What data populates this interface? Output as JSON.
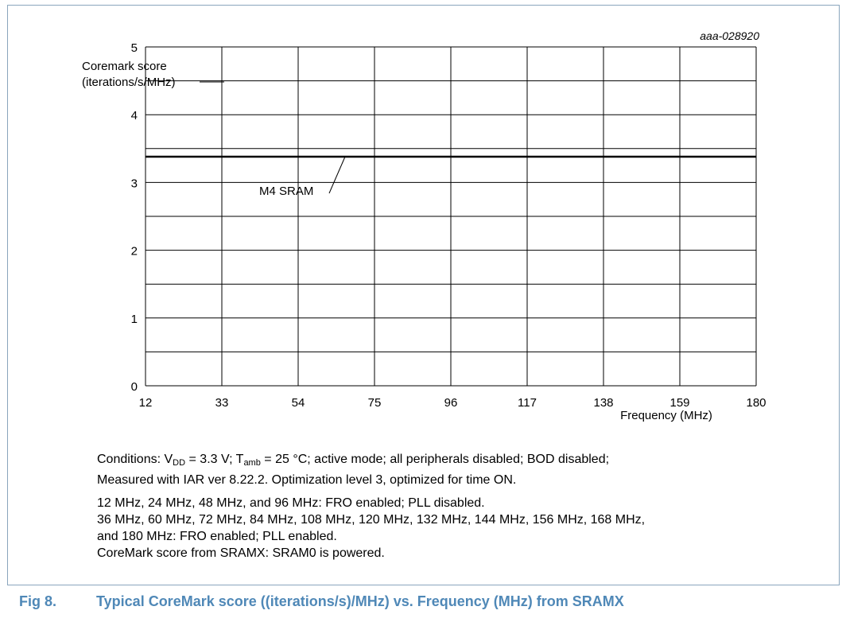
{
  "chart_data": {
    "type": "line",
    "code": "aaa-028920",
    "ylabel_line1": "Coremark score",
    "ylabel_line2": "(iterations/s/MHz)",
    "xlabel": "Frequency (MHz)",
    "x_ticks": [
      "12",
      "33",
      "54",
      "75",
      "96",
      "117",
      "138",
      "159",
      "180"
    ],
    "y_ticks": [
      "0",
      "1",
      "2",
      "3",
      "4",
      "5"
    ],
    "xlim": [
      12,
      180
    ],
    "ylim": [
      0,
      5
    ],
    "grid": true,
    "series": [
      {
        "name": "M4 SRAM",
        "x": [
          12,
          180
        ],
        "y": [
          3.38,
          3.38
        ]
      }
    ],
    "colors": {
      "line": "#000000",
      "grid": "#000000"
    }
  },
  "notes": {
    "cond_prefix": "Conditions: V",
    "vdd_sub": "DD",
    "vdd_value": " = 3.3 V; T",
    "tamb_sub": "amb",
    "cond_rest": " = 25 °C; active mode; all peripherals disabled; BOD disabled;",
    "cond_line2": "Measured with IAR ver 8.22.2. Optimization level 3, optimized for time ON.",
    "line3": "12 MHz, 24 MHz, 48 MHz, and 96 MHz: FRO enabled; PLL disabled.",
    "line4": "36 MHz, 60 MHz, 72 MHz, 84 MHz, 108 MHz, 120 MHz, 132 MHz, 144 MHz, 156 MHz, 168 MHz,",
    "line5": "and 180 MHz: FRO enabled; PLL enabled.",
    "line6": "CoreMark score from SRAMX: SRAM0 is powered."
  },
  "caption": {
    "fig": "Fig 8.",
    "text": "Typical CoreMark score ((iterations/s)/MHz) vs. Frequency (MHz) from SRAMX"
  },
  "colors": {
    "frame": "#8aa5bd",
    "caption": "#4f88b7"
  }
}
